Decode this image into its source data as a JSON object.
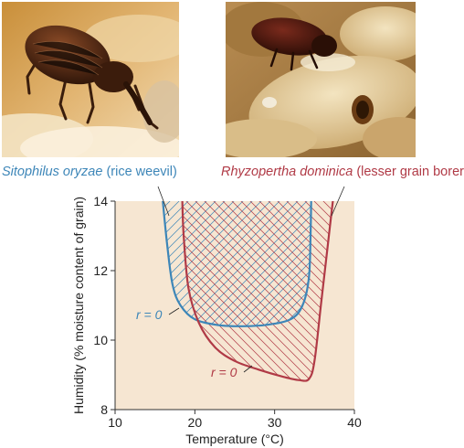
{
  "captions": {
    "left": {
      "species": "Sitophilus oryzae",
      "common": "(rice weevil)"
    },
    "right": {
      "species": "Rhyzopertha dominica",
      "common": "(lesser grain borer)"
    }
  },
  "colors": {
    "background": "#f6e6d2",
    "rice_weevil": "#3d86b8",
    "grain_borer": "#b03a46"
  },
  "chart_data": {
    "type": "line",
    "title": "",
    "xlabel": "Temperature (°C)",
    "ylabel": "Humidity (% moisture content of grain)",
    "xlim": [
      10,
      40
    ],
    "ylim": [
      8,
      14
    ],
    "xticks": [
      10,
      20,
      30,
      40
    ],
    "yticks": [
      8,
      10,
      12,
      14
    ],
    "grid": false,
    "series": [
      {
        "name": "Sitophilus oryzae (rice weevil)",
        "label": "r = 0",
        "fill": "diagonal hatch (one direction)",
        "points": [
          [
            15.9,
            14.2
          ],
          [
            16.5,
            12.8
          ],
          [
            17.2,
            11.6
          ],
          [
            18.2,
            11.0
          ],
          [
            20,
            10.6
          ],
          [
            23,
            10.43
          ],
          [
            26,
            10.4
          ],
          [
            29,
            10.44
          ],
          [
            32,
            10.6
          ],
          [
            33.5,
            11.0
          ],
          [
            34.3,
            11.8
          ],
          [
            34.5,
            13.0
          ],
          [
            34.6,
            14.2
          ]
        ]
      },
      {
        "name": "Rhyzopertha dominica (lesser grain borer)",
        "label": "r = 0",
        "fill": "diagonal hatch (both directions)",
        "points": [
          [
            18.4,
            14.2
          ],
          [
            18.6,
            13.0
          ],
          [
            19.2,
            11.5
          ],
          [
            20.5,
            10.5
          ],
          [
            22.5,
            9.8
          ],
          [
            25,
            9.4
          ],
          [
            28,
            9.15
          ],
          [
            31,
            8.95
          ],
          [
            33,
            8.85
          ],
          [
            34.3,
            8.88
          ],
          [
            35,
            9.4
          ],
          [
            35.8,
            11.0
          ],
          [
            36.6,
            12.6
          ],
          [
            37.4,
            14.2
          ]
        ]
      }
    ]
  }
}
